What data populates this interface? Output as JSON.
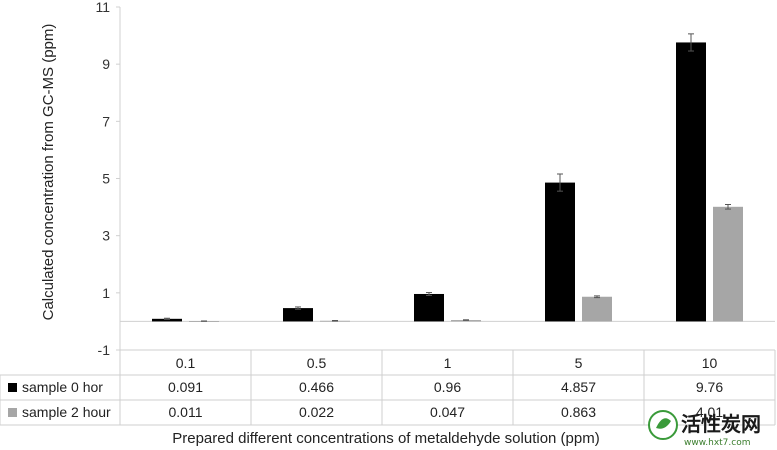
{
  "chart_data": {
    "type": "bar",
    "categories": [
      "0.1",
      "0.5",
      "1",
      "5",
      "10"
    ],
    "series": [
      {
        "name": "sample 0 hor",
        "color": "#000000",
        "values": [
          0.091,
          0.466,
          0.96,
          4.857,
          9.76
        ],
        "errors": [
          0.02,
          0.04,
          0.05,
          0.3,
          0.3
        ]
      },
      {
        "name": "sample 2 hour",
        "color": "#a6a6a6",
        "values": [
          0.011,
          0.022,
          0.047,
          0.863,
          4.01
        ],
        "errors": [
          0.005,
          0.01,
          0.01,
          0.03,
          0.08
        ]
      }
    ],
    "table_rows": [
      [
        "0.091",
        "0.466",
        "0.96",
        "4.857",
        "9.76"
      ],
      [
        "0.011",
        "0.022",
        "0.047",
        "0.863",
        "4.01"
      ]
    ],
    "ylabel": "Calculated concentration from GC-MS (ppm)",
    "xlabel": "Prepared different concentrations of metaldehyde solution (ppm)",
    "ylim": [
      -1,
      11
    ],
    "yticks": [
      -1,
      1,
      3,
      5,
      7,
      9,
      11
    ],
    "legend": "data-table"
  },
  "watermark": {
    "text": "活性炭网",
    "url": "www.hxt7.com"
  }
}
